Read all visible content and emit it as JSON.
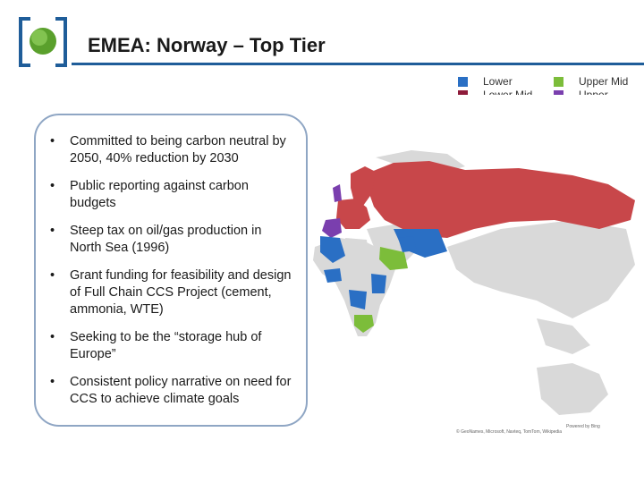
{
  "header": {
    "title": "EMEA: Norway – Top Tier"
  },
  "legend": {
    "items": [
      {
        "label": "Lower",
        "color": "#2a6fc4"
      },
      {
        "label": "Lower Mid",
        "color": "#8e1b3a"
      },
      {
        "label": "Upper Mid",
        "color": "#7cbd3a"
      },
      {
        "label": "Upper",
        "color": "#7a3fae"
      }
    ]
  },
  "bullets": [
    {
      "text": "Committed to being carbon neutral by 2050, 40% reduction by 2030"
    },
    {
      "text": "Public reporting against carbon budgets"
    },
    {
      "text": "Steep tax on oil/gas production in North Sea (1996)"
    },
    {
      "text": "Grant funding for feasibility and design of Full Chain CCS Project (cement, ammonia, WTE)"
    },
    {
      "text": "Seeking to be the “storage hub of Europe”"
    },
    {
      "text": "Consistent policy narrative on need for CCS to achieve climate goals"
    }
  ],
  "map": {
    "powered_by": "Powered by Bing",
    "copyright": "© GeoNames, Microsoft, Navteq, TomTom, Wikipedia"
  },
  "colors": {
    "russia": "#c8474a",
    "land_gray": "#d9d9d9",
    "accent_blue": "#1f5d99"
  }
}
